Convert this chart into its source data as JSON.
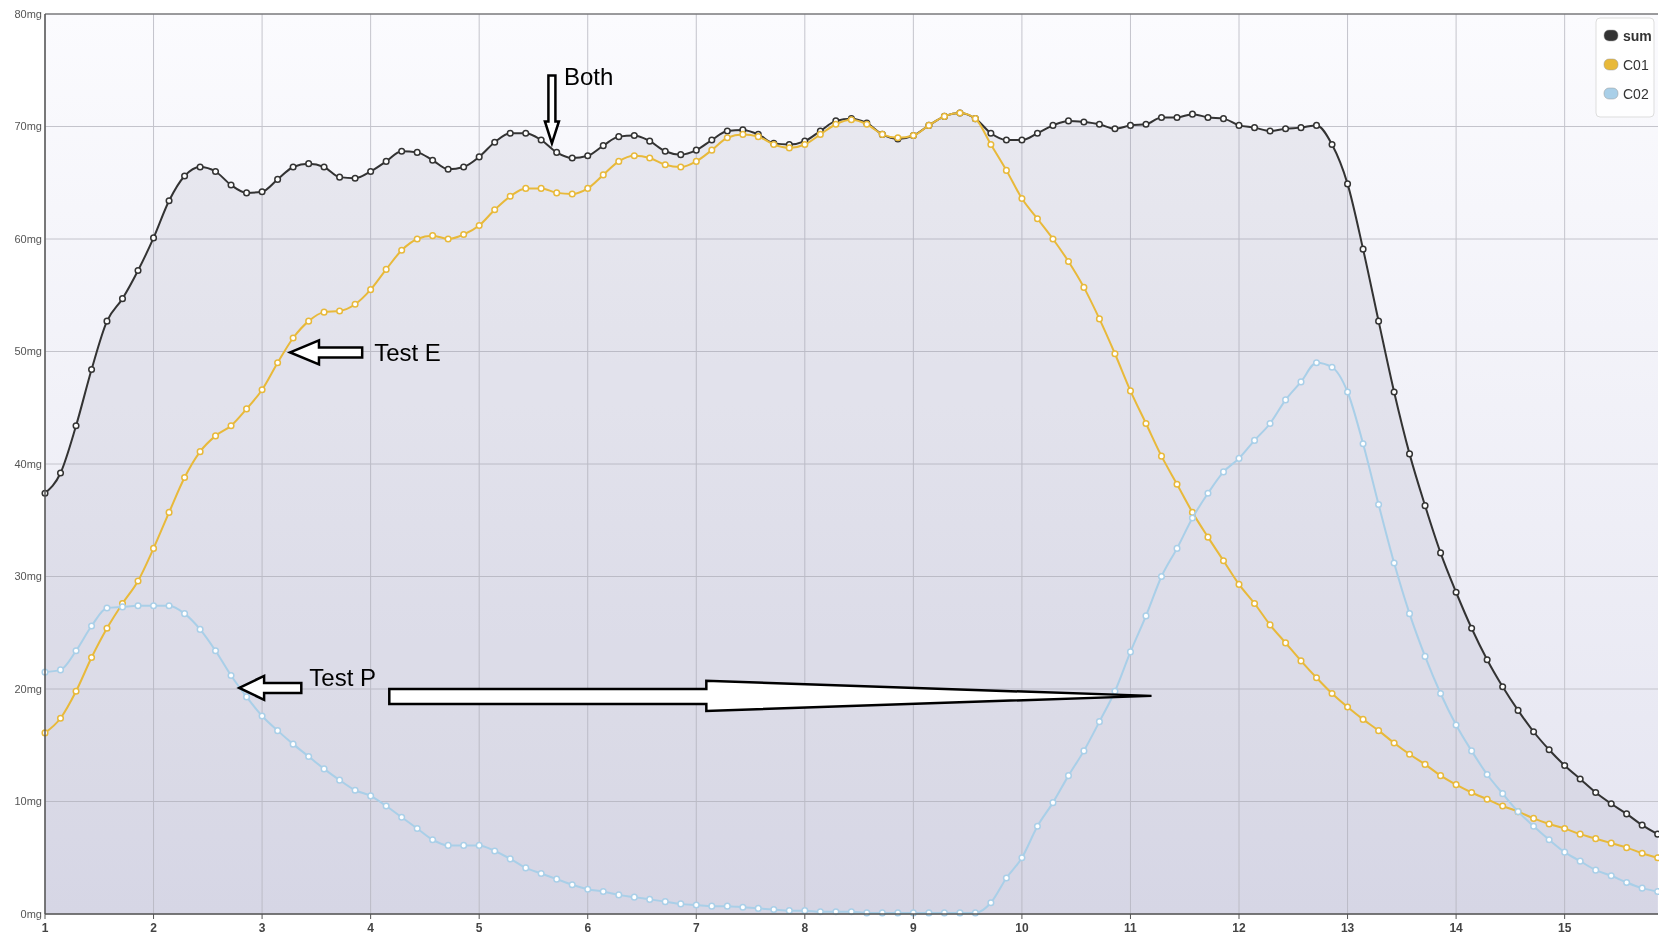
{
  "chart_data": {
    "type": "line",
    "marker": "circle",
    "grid": true,
    "legend": "top right",
    "x": [
      1,
      1.143,
      1.286,
      1.429,
      1.571,
      1.714,
      1.857,
      2,
      2.143,
      2.286,
      2.429,
      2.571,
      2.714,
      2.857,
      3,
      3.143,
      3.286,
      3.429,
      3.571,
      3.714,
      3.857,
      4,
      4.143,
      4.286,
      4.429,
      4.571,
      4.714,
      4.857,
      5,
      5.143,
      5.286,
      5.429,
      5.571,
      5.714,
      5.857,
      6,
      6.143,
      6.286,
      6.429,
      6.571,
      6.714,
      6.857,
      7,
      7.143,
      7.286,
      7.429,
      7.571,
      7.714,
      7.857,
      8,
      8.143,
      8.286,
      8.429,
      8.571,
      8.714,
      8.857,
      9,
      9.143,
      9.286,
      9.429,
      9.571,
      9.714,
      9.857,
      10,
      10.143,
      10.286,
      10.429,
      10.571,
      10.714,
      10.857,
      11,
      11.143,
      11.286,
      11.429,
      11.571,
      11.714,
      11.857,
      12,
      12.143,
      12.286,
      12.429,
      12.571,
      12.714,
      12.857,
      13,
      13.143,
      13.286,
      13.429,
      13.571,
      13.714,
      13.857,
      14,
      14.143,
      14.286,
      14.429,
      14.571,
      14.714,
      14.857,
      15,
      15.143,
      15.286,
      15.429,
      15.571,
      15.714,
      15.857
    ],
    "xlim": [
      1,
      15.86
    ],
    "xticks": [
      1,
      2,
      3,
      4,
      5,
      6,
      7,
      8,
      9,
      10,
      11,
      12,
      13,
      14,
      15
    ],
    "ylim": [
      0,
      80
    ],
    "yticks": [
      {
        "value": 0,
        "label": "0mg"
      },
      {
        "value": 10,
        "label": "10mg"
      },
      {
        "value": 20,
        "label": "20mg"
      },
      {
        "value": 30,
        "label": "30mg"
      },
      {
        "value": 40,
        "label": "40mg"
      },
      {
        "value": 50,
        "label": "50mg"
      },
      {
        "value": 60,
        "label": "60mg"
      },
      {
        "value": 70,
        "label": "70mg"
      },
      {
        "value": 80,
        "label": "80mg"
      }
    ],
    "series": [
      {
        "name": "sum",
        "type": "area",
        "color": "#333333",
        "values": [
          37.4,
          39.2,
          43.4,
          48.4,
          52.7,
          54.7,
          57.2,
          60.1,
          63.4,
          65.6,
          66.4,
          66.0,
          64.8,
          64.1,
          64.2,
          65.3,
          66.4,
          66.7,
          66.4,
          65.5,
          65.4,
          66.0,
          66.9,
          67.8,
          67.7,
          67.0,
          66.2,
          66.4,
          67.3,
          68.6,
          69.4,
          69.4,
          68.8,
          67.7,
          67.2,
          67.4,
          68.3,
          69.1,
          69.2,
          68.7,
          67.8,
          67.5,
          67.9,
          68.8,
          69.6,
          69.7,
          69.3,
          68.5,
          68.4,
          68.7,
          69.6,
          70.5,
          70.7,
          70.3,
          69.3,
          68.9,
          69.2,
          70.1,
          70.9,
          71.2,
          70.7,
          69.4,
          68.8,
          68.8,
          69.4,
          70.1,
          70.5,
          70.4,
          70.2,
          69.8,
          70.1,
          70.2,
          70.8,
          70.8,
          71.1,
          70.8,
          70.7,
          70.1,
          69.9,
          69.6,
          69.8,
          69.9,
          70.1,
          68.4,
          64.9,
          59.1,
          52.7,
          46.4,
          40.9,
          36.3,
          32.1,
          28.6,
          25.4,
          22.6,
          20.2,
          18.1,
          16.2,
          14.6,
          13.2,
          12.0,
          10.8,
          9.8,
          8.9,
          7.9,
          7.1
        ]
      },
      {
        "name": "C01",
        "color": "#e8b93a",
        "values": [
          16.1,
          17.4,
          19.8,
          22.8,
          25.4,
          27.6,
          29.6,
          32.5,
          35.7,
          38.8,
          41.1,
          42.5,
          43.4,
          44.9,
          46.6,
          49.0,
          51.2,
          52.7,
          53.5,
          53.6,
          54.2,
          55.5,
          57.3,
          59.0,
          60.0,
          60.3,
          60.0,
          60.4,
          61.2,
          62.6,
          63.8,
          64.5,
          64.5,
          64.1,
          64.0,
          64.5,
          65.7,
          66.9,
          67.4,
          67.2,
          66.6,
          66.4,
          66.9,
          67.9,
          69.0,
          69.3,
          69.1,
          68.4,
          68.1,
          68.4,
          69.3,
          70.2,
          70.6,
          70.2,
          69.3,
          69.0,
          69.2,
          70.1,
          70.9,
          71.2,
          70.7,
          68.4,
          66.1,
          63.6,
          61.8,
          60.0,
          58.0,
          55.7,
          52.9,
          49.8,
          46.5,
          43.6,
          40.7,
          38.2,
          35.7,
          33.5,
          31.4,
          29.3,
          27.6,
          25.7,
          24.1,
          22.5,
          21.0,
          19.6,
          18.4,
          17.3,
          16.3,
          15.2,
          14.2,
          13.3,
          12.3,
          11.5,
          10.8,
          10.2,
          9.6,
          9.1,
          8.5,
          8.0,
          7.6,
          7.1,
          6.7,
          6.3,
          5.9,
          5.4,
          5.0
        ]
      },
      {
        "name": "C02",
        "color": "#a9cfe8",
        "values": [
          21.5,
          21.7,
          23.4,
          25.6,
          27.2,
          27.3,
          27.4,
          27.4,
          27.4,
          26.7,
          25.3,
          23.4,
          21.2,
          19.3,
          17.6,
          16.3,
          15.1,
          14.0,
          12.9,
          11.9,
          11.0,
          10.5,
          9.6,
          8.6,
          7.6,
          6.6,
          6.1,
          6.1,
          6.1,
          5.6,
          4.9,
          4.1,
          3.6,
          3.1,
          2.6,
          2.2,
          2.0,
          1.7,
          1.5,
          1.3,
          1.1,
          0.9,
          0.8,
          0.7,
          0.7,
          0.6,
          0.5,
          0.4,
          0.3,
          0.3,
          0.2,
          0.2,
          0.2,
          0.1,
          0.1,
          0.1,
          0.1,
          0.1,
          0.1,
          0.1,
          0.1,
          1.0,
          3.2,
          5.0,
          7.8,
          9.9,
          12.3,
          14.5,
          17.1,
          19.8,
          23.3,
          26.5,
          30.0,
          32.5,
          35.2,
          37.4,
          39.3,
          40.5,
          42.1,
          43.6,
          45.7,
          47.3,
          49.0,
          48.6,
          46.4,
          41.8,
          36.4,
          31.2,
          26.7,
          22.9,
          19.6,
          16.8,
          14.5,
          12.4,
          10.7,
          9.1,
          7.8,
          6.6,
          5.5,
          4.7,
          3.9,
          3.4,
          2.8,
          2.3,
          2.0
        ]
      }
    ],
    "annotations": [
      {
        "text": "Both",
        "x": 5.67,
        "y": 68.5
      },
      "Test E",
      {
        "text": "Test P",
        "x": 2.79,
        "y": 20.1
      }
    ]
  }
}
